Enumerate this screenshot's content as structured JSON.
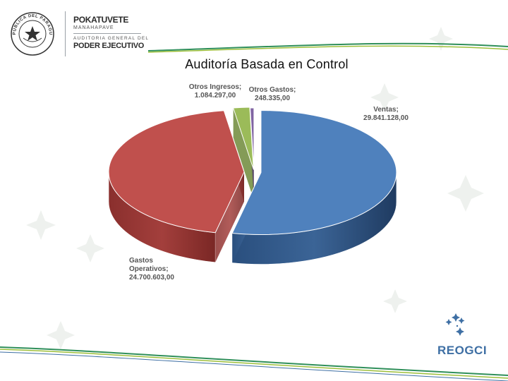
{
  "header": {
    "brand_line1": "POKATUVETE",
    "brand_line2": "MANAHAPAVE",
    "brand_line3": "AUDITORIA GENERAL DEL",
    "brand_line4": "PODER EJECUTIVO",
    "seal_text": "REPÚBLICA DEL PARAGUAY"
  },
  "page_title": "Auditoría Basada en Control",
  "chart_data": {
    "type": "pie",
    "style": "3d-exploded",
    "title": "",
    "slices": [
      {
        "name": "Ventas",
        "value": 29841128.0,
        "label": "Ventas;",
        "value_label": "29.841.128,00",
        "color": "#4f81bd"
      },
      {
        "name": "Gastos Operativos",
        "value": 24700603.0,
        "label_lines": [
          "Gastos",
          "Operativos;"
        ],
        "value_label": "24.700.603,00",
        "color": "#c0504d"
      },
      {
        "name": "Otros Ingresos",
        "value": 1084297.0,
        "label": "Otros Ingresos;",
        "value_label": "1.084.297,00",
        "color": "#9bbb59"
      },
      {
        "name": "Otros Gastos",
        "value": 248335.0,
        "label": "Otros Gastos;",
        "value_label": "248.335,00",
        "color": "#8064a2"
      }
    ]
  },
  "footer_logo": {
    "text": "REOGCI",
    "color": "#3e6fa4"
  }
}
